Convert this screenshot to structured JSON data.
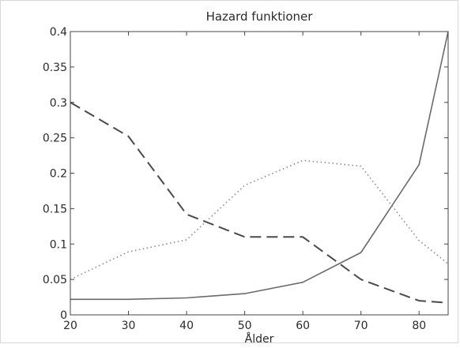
{
  "chart_data": {
    "type": "line",
    "title": "Hazard funktioner",
    "xlabel": "Ålder",
    "ylabel": "",
    "xlim": [
      20,
      85
    ],
    "ylim": [
      0,
      0.4
    ],
    "grid": false,
    "legend": "none",
    "x_ticks": [
      20,
      30,
      40,
      50,
      60,
      70,
      80
    ],
    "y_ticks": [
      0,
      0.05,
      0.1,
      0.15,
      0.2,
      0.25,
      0.3,
      0.35,
      0.4
    ],
    "x_tick_labels": [
      "20",
      "30",
      "40",
      "50",
      "60",
      "70",
      "80"
    ],
    "y_tick_labels": [
      "0",
      "0.05",
      "0.1",
      "0.15",
      "0.2",
      "0.25",
      "0.3",
      "0.35",
      "0.4"
    ],
    "x": [
      20,
      30,
      40,
      50,
      60,
      70,
      80,
      85
    ],
    "series": [
      {
        "style": "solid",
        "color": "#6a6a6a",
        "values": [
          0.022,
          0.022,
          0.024,
          0.03,
          0.046,
          0.088,
          0.212,
          0.4
        ]
      },
      {
        "style": "dashed",
        "color": "#4a4a4a",
        "values": [
          0.3,
          0.252,
          0.142,
          0.11,
          0.11,
          0.05,
          0.02,
          0.017
        ]
      },
      {
        "style": "dotted",
        "color": "#8a8a8a",
        "values": [
          0.05,
          0.089,
          0.106,
          0.183,
          0.218,
          0.21,
          0.105,
          0.072
        ]
      }
    ]
  }
}
